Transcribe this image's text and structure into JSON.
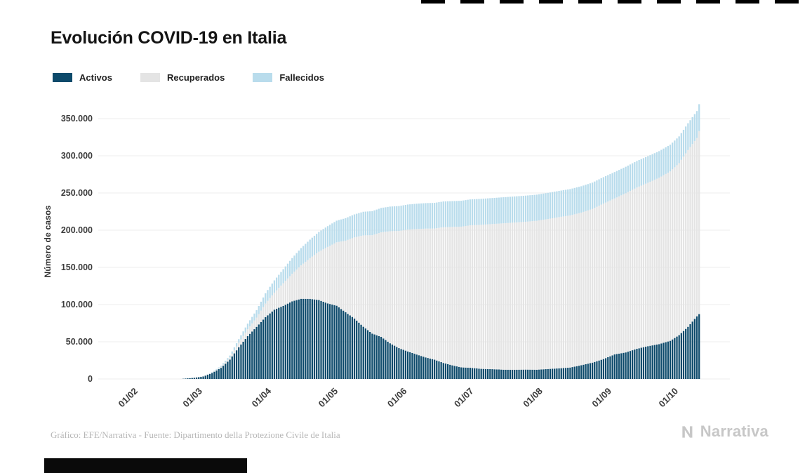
{
  "page": {
    "title": "Evolución COVID-19 en Italia",
    "footer_source": "Gráfico: EFE/Narrativa - Fuente: Dipartimento della Protezione Civile de Italia",
    "brand": "Narrativa"
  },
  "chart_data": {
    "type": "bar",
    "stacked": true,
    "title": "Evolución COVID-19 en Italia",
    "xlabel": "",
    "ylabel": "Número de casos",
    "ylim": [
      0,
      360000
    ],
    "grid": true,
    "legend_position": "top-left",
    "series": [
      {
        "name": "Activos",
        "key": "a",
        "color": "#0d4a6b"
      },
      {
        "name": "Recuperados",
        "key": "r",
        "color": "#e4e4e4"
      },
      {
        "name": "Fallecidos",
        "key": "f",
        "color": "#b9dcec"
      }
    ],
    "y_ticks": [
      {
        "value": 0,
        "label": "0"
      },
      {
        "value": 50000,
        "label": "50.000"
      },
      {
        "value": 100000,
        "label": "100.000"
      },
      {
        "value": 150000,
        "label": "150.000"
      },
      {
        "value": 200000,
        "label": "200.000"
      },
      {
        "value": 250000,
        "label": "250.000"
      },
      {
        "value": 300000,
        "label": "300.000"
      },
      {
        "value": 350000,
        "label": "350.000"
      }
    ],
    "x_ticks": [
      {
        "date": "2020-02-01",
        "label": "01/02"
      },
      {
        "date": "2020-03-01",
        "label": "01/03"
      },
      {
        "date": "2020-04-01",
        "label": "01/04"
      },
      {
        "date": "2020-05-01",
        "label": "01/05"
      },
      {
        "date": "2020-06-01",
        "label": "01/06"
      },
      {
        "date": "2020-07-01",
        "label": "01/07"
      },
      {
        "date": "2020-08-01",
        "label": "01/08"
      },
      {
        "date": "2020-09-01",
        "label": "01/09"
      },
      {
        "date": "2020-10-01",
        "label": "01/10"
      }
    ],
    "points": [
      {
        "d": "2020-02-21",
        "a": 17,
        "r": 0,
        "f": 1
      },
      {
        "d": "2020-02-25",
        "a": 276,
        "r": 3,
        "f": 11
      },
      {
        "d": "2020-03-01",
        "a": 1577,
        "r": 83,
        "f": 34
      },
      {
        "d": "2020-03-05",
        "a": 3296,
        "r": 414,
        "f": 148
      },
      {
        "d": "2020-03-09",
        "a": 7985,
        "r": 724,
        "f": 463
      },
      {
        "d": "2020-03-13",
        "a": 14955,
        "r": 1439,
        "f": 1266
      },
      {
        "d": "2020-03-17",
        "a": 26062,
        "r": 2941,
        "f": 2503
      },
      {
        "d": "2020-03-21",
        "a": 42681,
        "r": 6072,
        "f": 4825
      },
      {
        "d": "2020-03-25",
        "a": 57521,
        "r": 9362,
        "f": 7503
      },
      {
        "d": "2020-03-29",
        "a": 70065,
        "r": 12384,
        "f": 10023
      },
      {
        "d": "2020-04-02",
        "a": 83049,
        "r": 18278,
        "f": 13915
      },
      {
        "d": "2020-04-06",
        "a": 93187,
        "r": 22837,
        "f": 16523
      },
      {
        "d": "2020-04-10",
        "a": 98273,
        "r": 30455,
        "f": 18849
      },
      {
        "d": "2020-04-14",
        "a": 104291,
        "r": 37130,
        "f": 21067
      },
      {
        "d": "2020-04-18",
        "a": 107771,
        "r": 44927,
        "f": 23227
      },
      {
        "d": "2020-04-22",
        "a": 107699,
        "r": 54543,
        "f": 25085
      },
      {
        "d": "2020-04-26",
        "a": 106103,
        "r": 64928,
        "f": 26644
      },
      {
        "d": "2020-04-30",
        "a": 101551,
        "r": 75945,
        "f": 27967
      },
      {
        "d": "2020-05-04",
        "a": 98467,
        "r": 85231,
        "f": 29079
      },
      {
        "d": "2020-05-08",
        "a": 89624,
        "r": 96276,
        "f": 30201
      },
      {
        "d": "2020-05-12",
        "a": 81266,
        "r": 109039,
        "f": 30911
      },
      {
        "d": "2020-05-16",
        "a": 70187,
        "r": 122810,
        "f": 31763
      },
      {
        "d": "2020-05-20",
        "a": 60960,
        "r": 132282,
        "f": 32330
      },
      {
        "d": "2020-05-24",
        "a": 56594,
        "r": 140479,
        "f": 32785
      },
      {
        "d": "2020-05-28",
        "a": 47986,
        "r": 150604,
        "f": 33142
      },
      {
        "d": "2020-06-01",
        "a": 41462,
        "r": 157507,
        "f": 33475
      },
      {
        "d": "2020-06-05",
        "a": 36976,
        "r": 163781,
        "f": 33774
      },
      {
        "d": "2020-06-09",
        "a": 32872,
        "r": 168646,
        "f": 34043
      },
      {
        "d": "2020-06-13",
        "a": 28997,
        "r": 173085,
        "f": 34301
      },
      {
        "d": "2020-06-17",
        "a": 25909,
        "r": 176370,
        "f": 34448
      },
      {
        "d": "2020-06-21",
        "a": 21543,
        "r": 182453,
        "f": 34610
      },
      {
        "d": "2020-06-25",
        "a": 18303,
        "r": 186111,
        "f": 34678
      },
      {
        "d": "2020-06-29",
        "a": 15563,
        "r": 189196,
        "f": 34767
      },
      {
        "d": "2020-07-03",
        "a": 15060,
        "r": 191467,
        "f": 34833
      },
      {
        "d": "2020-07-08",
        "a": 13595,
        "r": 193640,
        "f": 34914
      },
      {
        "d": "2020-07-13",
        "a": 13157,
        "r": 195106,
        "f": 34967
      },
      {
        "d": "2020-07-18",
        "a": 12456,
        "r": 196806,
        "f": 35028
      },
      {
        "d": "2020-07-23",
        "a": 12404,
        "r": 197842,
        "f": 35092
      },
      {
        "d": "2020-07-28",
        "a": 12581,
        "r": 198756,
        "f": 35123
      },
      {
        "d": "2020-08-02",
        "a": 12422,
        "r": 200229,
        "f": 35146
      },
      {
        "d": "2020-08-07",
        "a": 13368,
        "r": 201642,
        "f": 35190
      },
      {
        "d": "2020-08-12",
        "a": 14249,
        "r": 203326,
        "f": 35225
      },
      {
        "d": "2020-08-17",
        "a": 15360,
        "r": 204506,
        "f": 35405
      },
      {
        "d": "2020-08-22",
        "a": 18438,
        "r": 205203,
        "f": 35430
      },
      {
        "d": "2020-08-27",
        "a": 21932,
        "r": 206554,
        "f": 35463
      },
      {
        "d": "2020-09-01",
        "a": 26754,
        "r": 209027,
        "f": 35491
      },
      {
        "d": "2020-09-06",
        "a": 32993,
        "r": 209610,
        "f": 35541
      },
      {
        "d": "2020-09-11",
        "a": 35708,
        "r": 213950,
        "f": 35597
      },
      {
        "d": "2020-09-16",
        "a": 40532,
        "r": 216807,
        "f": 35658
      },
      {
        "d": "2020-09-21",
        "a": 44098,
        "r": 219670,
        "f": 35724
      },
      {
        "d": "2020-09-26",
        "a": 46780,
        "r": 223693,
        "f": 35781
      },
      {
        "d": "2020-10-01",
        "a": 51263,
        "r": 227704,
        "f": 35918
      },
      {
        "d": "2020-10-05",
        "a": 58903,
        "r": 231217,
        "f": 36002
      },
      {
        "d": "2020-10-09",
        "a": 70110,
        "r": 237549,
        "f": 36111
      },
      {
        "d": "2020-10-13",
        "a": 84246,
        "r": 239709,
        "f": 36205
      },
      {
        "d": "2020-10-14",
        "a": 87193,
        "r": 245964,
        "f": 36246
      }
    ]
  }
}
